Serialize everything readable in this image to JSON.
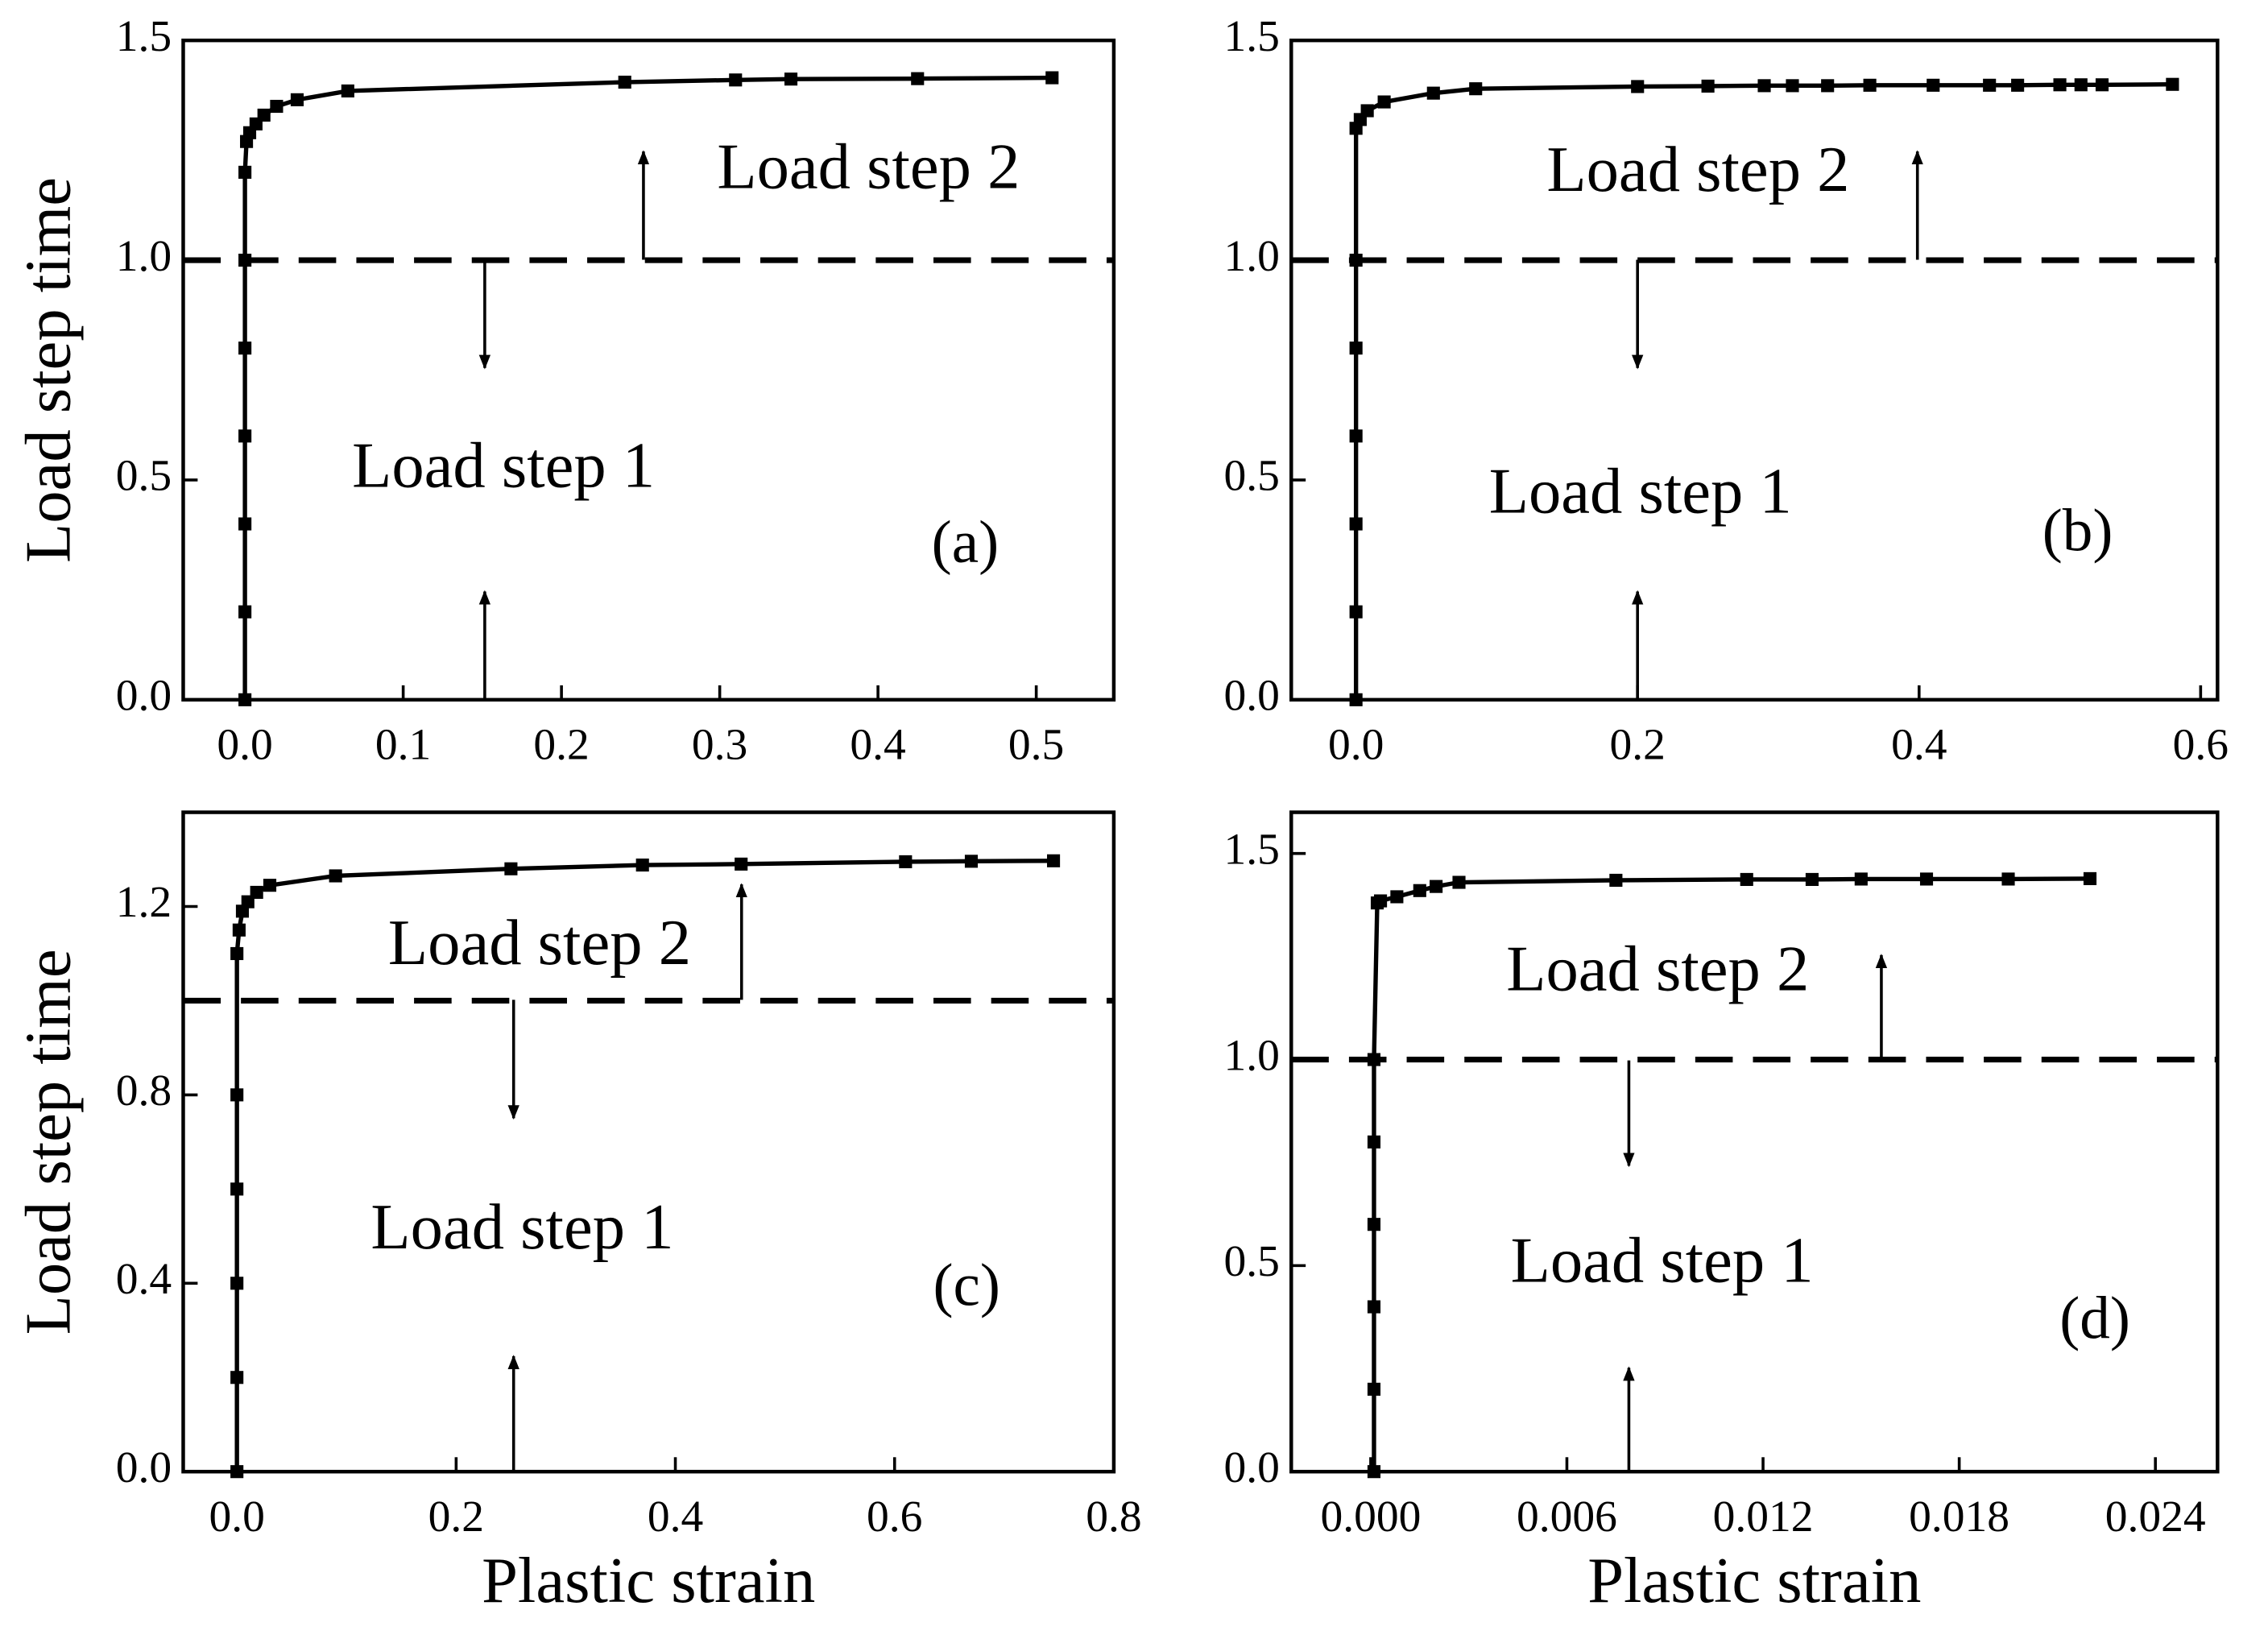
{
  "chart_data": [
    {
      "type": "line",
      "panel_label": "(a)",
      "ylabel": "Load step time",
      "annotations": [
        "Load step 2",
        "Load step 1"
      ],
      "hline": 1.0,
      "color": "#000000",
      "xlim": [
        -0.039,
        0.549
      ],
      "ylim": [
        0,
        1.5
      ],
      "xticks": [
        {
          "value": 0,
          "label": "0.0"
        },
        0.1,
        0.2,
        0.3,
        0.4,
        0.5
      ],
      "yticks": [
        {
          "value": 0,
          "label": "0.0"
        },
        0.5,
        {
          "value": 1,
          "label": "1.0"
        },
        1.5
      ],
      "x": [
        0,
        0,
        0,
        0,
        0,
        0,
        0,
        0.001,
        0.003,
        0.007,
        0.012,
        0.02,
        0.033,
        0.065,
        0.24,
        0.31,
        0.345,
        0.425,
        0.51
      ],
      "values": [
        0,
        0.2,
        0.4,
        0.6,
        0.8,
        1.0,
        1.2,
        1.27,
        1.29,
        1.31,
        1.33,
        1.35,
        1.365,
        1.385,
        1.405,
        1.41,
        1.412,
        1.413,
        1.415
      ]
    },
    {
      "type": "line",
      "panel_label": "(b)",
      "annotations": [
        "Load step 2",
        "Load step 1"
      ],
      "hline": 1.0,
      "color": "#000000",
      "xlim": [
        -0.046,
        0.612
      ],
      "ylim": [
        0,
        1.5
      ],
      "xticks": [
        {
          "value": 0,
          "label": "0.0"
        },
        0.2,
        0.4,
        0.6
      ],
      "yticks": [
        {
          "value": 0,
          "label": "0.0"
        },
        0.5,
        {
          "value": 1,
          "label": "1.0"
        },
        1.5
      ],
      "x": [
        0,
        0,
        0,
        0,
        0,
        0,
        0,
        0.003,
        0.008,
        0.02,
        0.055,
        0.085,
        0.2,
        0.25,
        0.29,
        0.31,
        0.335,
        0.365,
        0.41,
        0.45,
        0.47,
        0.5,
        0.515,
        0.53,
        0.58
      ],
      "values": [
        0,
        0.2,
        0.4,
        0.6,
        0.8,
        1.0,
        1.3,
        1.32,
        1.34,
        1.36,
        1.38,
        1.39,
        1.395,
        1.396,
        1.397,
        1.397,
        1.397,
        1.398,
        1.398,
        1.398,
        1.398,
        1.399,
        1.399,
        1.399,
        1.4
      ]
    },
    {
      "type": "line",
      "panel_label": "(c)",
      "ylabel": "Load step time",
      "xlabel": "Plastic strain",
      "annotations": [
        "Load step 2",
        "Load step 1"
      ],
      "hline": 1.0,
      "color": "#000000",
      "xlim": [
        -0.049,
        0.8
      ],
      "ylim": [
        0,
        1.4
      ],
      "xticks": [
        {
          "value": 0,
          "label": "0.0"
        },
        0.2,
        0.4,
        0.6,
        0.8
      ],
      "yticks": [
        {
          "value": 0,
          "label": "0.0"
        },
        0.4,
        0.8,
        1.2
      ],
      "x": [
        0,
        0,
        0,
        0,
        0,
        0,
        0.002,
        0.005,
        0.01,
        0.018,
        0.03,
        0.09,
        0.25,
        0.37,
        0.46,
        0.61,
        0.67,
        0.745
      ],
      "values": [
        0,
        0.2,
        0.4,
        0.6,
        0.8,
        1.1,
        1.15,
        1.19,
        1.21,
        1.23,
        1.245,
        1.265,
        1.28,
        1.288,
        1.29,
        1.295,
        1.296,
        1.297
      ]
    },
    {
      "type": "line",
      "panel_label": "(d)",
      "xlabel": "Plastic strain",
      "annotations": [
        "Load step 2",
        "Load step 1"
      ],
      "hline": 1.0,
      "color": "#000000",
      "xlim": [
        -0.00243,
        0.0259
      ],
      "ylim": [
        0,
        1.6
      ],
      "xticks": [
        {
          "value": 0,
          "label": "0.000"
        },
        0.006,
        0.012,
        0.018,
        0.024
      ],
      "yticks": [
        {
          "value": 0,
          "label": "0.0"
        },
        0.5,
        {
          "value": 1,
          "label": "1.0"
        },
        1.5
      ],
      "x": [
        0.0001,
        0.0001,
        0.0001,
        0.0001,
        0.0001,
        0.0001,
        0.0002,
        0.0003,
        0.0008,
        0.0015,
        0.002,
        0.0027,
        0.0075,
        0.0115,
        0.0135,
        0.015,
        0.017,
        0.0195,
        0.022
      ],
      "values": [
        0,
        0.2,
        0.4,
        0.6,
        0.8,
        1.0,
        1.38,
        1.385,
        1.395,
        1.41,
        1.42,
        1.43,
        1.435,
        1.437,
        1.437,
        1.438,
        1.438,
        1.438,
        1.439
      ]
    }
  ]
}
